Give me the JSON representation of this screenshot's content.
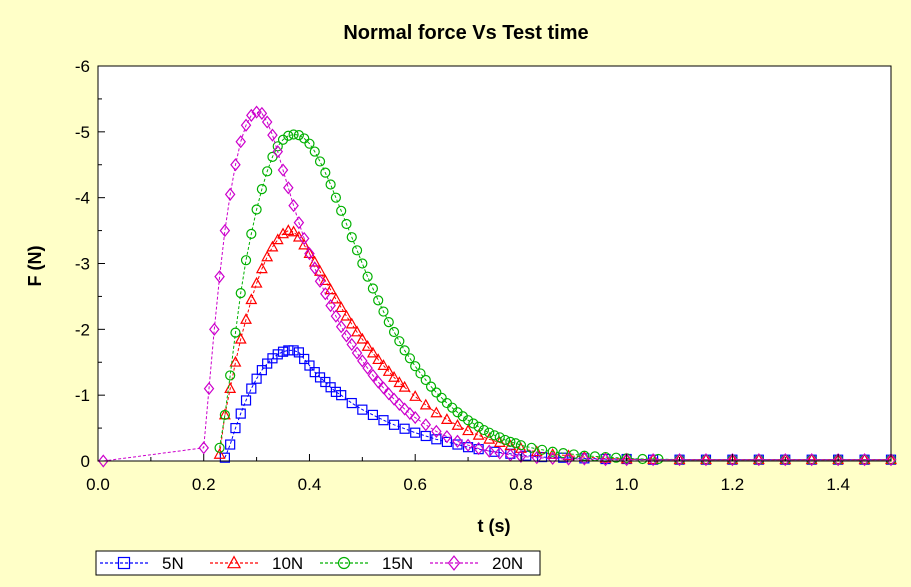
{
  "chart_data": {
    "type": "scatter",
    "title": "Normal force Vs Test time",
    "xlabel": "t (s)",
    "ylabel": "F (N)",
    "xlim": [
      0.0,
      1.5
    ],
    "ylim": [
      0,
      -6
    ],
    "y_axis_inverted": true,
    "grid": false,
    "legend_position": "bottom-left",
    "x_ticks": [
      "0.0",
      "0.2",
      "0.4",
      "0.6",
      "0.8",
      "1.0",
      "1.2",
      "1.4"
    ],
    "y_ticks": [
      "0",
      "-1",
      "-2",
      "-3",
      "-4",
      "-5",
      "-6"
    ],
    "series": [
      {
        "name": "5N",
        "color": "#0000ff",
        "marker": "square",
        "x": [
          0.24,
          0.25,
          0.26,
          0.27,
          0.28,
          0.29,
          0.3,
          0.31,
          0.32,
          0.33,
          0.34,
          0.35,
          0.36,
          0.37,
          0.38,
          0.39,
          0.4,
          0.41,
          0.42,
          0.43,
          0.44,
          0.45,
          0.46,
          0.48,
          0.5,
          0.52,
          0.54,
          0.56,
          0.58,
          0.6,
          0.62,
          0.64,
          0.66,
          0.68,
          0.7,
          0.72,
          0.75,
          0.78,
          0.81,
          0.84,
          0.88,
          0.92,
          0.96,
          1.0,
          1.05,
          1.1,
          1.15,
          1.2,
          1.25,
          1.3,
          1.35,
          1.4,
          1.45,
          1.5
        ],
        "y": [
          -0.05,
          -0.25,
          -0.5,
          -0.72,
          -0.92,
          -1.1,
          -1.25,
          -1.38,
          -1.48,
          -1.56,
          -1.62,
          -1.66,
          -1.68,
          -1.68,
          -1.65,
          -1.55,
          -1.45,
          -1.35,
          -1.27,
          -1.2,
          -1.12,
          -1.05,
          -1.0,
          -0.88,
          -0.78,
          -0.7,
          -0.62,
          -0.55,
          -0.49,
          -0.43,
          -0.38,
          -0.33,
          -0.29,
          -0.25,
          -0.21,
          -0.18,
          -0.14,
          -0.11,
          -0.08,
          -0.06,
          -0.05,
          -0.04,
          -0.03,
          -0.03,
          -0.02,
          -0.02,
          -0.02,
          -0.02,
          -0.02,
          -0.02,
          -0.02,
          -0.02,
          -0.02,
          -0.02
        ]
      },
      {
        "name": "10N",
        "color": "#ff0000",
        "marker": "triangle",
        "x": [
          0.23,
          0.24,
          0.25,
          0.26,
          0.27,
          0.28,
          0.29,
          0.3,
          0.31,
          0.32,
          0.33,
          0.34,
          0.35,
          0.36,
          0.37,
          0.38,
          0.39,
          0.4,
          0.41,
          0.42,
          0.43,
          0.44,
          0.45,
          0.46,
          0.47,
          0.48,
          0.49,
          0.5,
          0.51,
          0.52,
          0.53,
          0.54,
          0.55,
          0.56,
          0.57,
          0.58,
          0.6,
          0.62,
          0.64,
          0.66,
          0.68,
          0.7,
          0.72,
          0.74,
          0.76,
          0.78,
          0.8,
          0.83,
          0.86,
          0.89,
          0.92,
          0.96,
          1.0,
          1.05,
          1.1,
          1.15,
          1.2,
          1.25,
          1.3,
          1.35,
          1.4,
          1.45,
          1.5
        ],
        "y": [
          -0.1,
          -0.7,
          -1.1,
          -1.5,
          -1.85,
          -2.15,
          -2.45,
          -2.7,
          -2.92,
          -3.1,
          -3.25,
          -3.36,
          -3.45,
          -3.5,
          -3.48,
          -3.4,
          -3.28,
          -3.15,
          -3.02,
          -2.88,
          -2.74,
          -2.6,
          -2.46,
          -2.33,
          -2.2,
          -2.08,
          -1.96,
          -1.85,
          -1.74,
          -1.64,
          -1.54,
          -1.45,
          -1.36,
          -1.27,
          -1.19,
          -1.12,
          -0.98,
          -0.85,
          -0.73,
          -0.63,
          -0.54,
          -0.46,
          -0.39,
          -0.33,
          -0.28,
          -0.23,
          -0.19,
          -0.14,
          -0.1,
          -0.08,
          -0.06,
          -0.04,
          -0.03,
          -0.02,
          -0.02,
          -0.02,
          -0.02,
          -0.02,
          -0.02,
          -0.02,
          -0.02,
          -0.02,
          -0.02
        ]
      },
      {
        "name": "15N",
        "color": "#00b000",
        "marker": "circle",
        "x": [
          0.23,
          0.24,
          0.25,
          0.26,
          0.27,
          0.28,
          0.29,
          0.3,
          0.31,
          0.32,
          0.33,
          0.34,
          0.35,
          0.36,
          0.37,
          0.38,
          0.39,
          0.4,
          0.41,
          0.42,
          0.43,
          0.44,
          0.45,
          0.46,
          0.47,
          0.48,
          0.49,
          0.5,
          0.51,
          0.52,
          0.53,
          0.54,
          0.55,
          0.56,
          0.57,
          0.58,
          0.59,
          0.6,
          0.61,
          0.62,
          0.63,
          0.64,
          0.65,
          0.66,
          0.67,
          0.68,
          0.69,
          0.7,
          0.71,
          0.72,
          0.73,
          0.74,
          0.75,
          0.76,
          0.77,
          0.78,
          0.79,
          0.8,
          0.82,
          0.84,
          0.86,
          0.88,
          0.9,
          0.92,
          0.94,
          0.96,
          0.98,
          1.0,
          1.03,
          1.06,
          1.1,
          1.15,
          1.2,
          1.25,
          1.3,
          1.35,
          1.4,
          1.45,
          1.5
        ],
        "y": [
          -0.2,
          -0.7,
          -1.3,
          -1.95,
          -2.55,
          -3.05,
          -3.45,
          -3.82,
          -4.13,
          -4.4,
          -4.62,
          -4.78,
          -4.88,
          -4.94,
          -4.96,
          -4.95,
          -4.9,
          -4.82,
          -4.7,
          -4.55,
          -4.38,
          -4.2,
          -4.0,
          -3.8,
          -3.6,
          -3.4,
          -3.2,
          -3.0,
          -2.8,
          -2.62,
          -2.44,
          -2.27,
          -2.11,
          -1.96,
          -1.82,
          -1.68,
          -1.56,
          -1.44,
          -1.33,
          -1.23,
          -1.13,
          -1.04,
          -0.96,
          -0.88,
          -0.81,
          -0.74,
          -0.68,
          -0.62,
          -0.57,
          -0.52,
          -0.47,
          -0.43,
          -0.39,
          -0.36,
          -0.32,
          -0.29,
          -0.27,
          -0.24,
          -0.2,
          -0.17,
          -0.14,
          -0.12,
          -0.1,
          -0.08,
          -0.07,
          -0.06,
          -0.05,
          -0.04,
          -0.03,
          -0.03,
          -0.02,
          -0.02,
          -0.02,
          -0.02,
          -0.02,
          -0.02,
          -0.02,
          -0.02,
          -0.02
        ]
      },
      {
        "name": "20N",
        "color": "#cc00cc",
        "marker": "diamond",
        "x": [
          0.01,
          0.2,
          0.21,
          0.22,
          0.23,
          0.24,
          0.25,
          0.26,
          0.27,
          0.28,
          0.29,
          0.3,
          0.31,
          0.32,
          0.33,
          0.34,
          0.35,
          0.36,
          0.37,
          0.38,
          0.39,
          0.4,
          0.41,
          0.42,
          0.43,
          0.44,
          0.45,
          0.46,
          0.47,
          0.48,
          0.49,
          0.5,
          0.51,
          0.52,
          0.53,
          0.54,
          0.55,
          0.56,
          0.57,
          0.58,
          0.59,
          0.6,
          0.62,
          0.64,
          0.66,
          0.68,
          0.7,
          0.72,
          0.74,
          0.76,
          0.78,
          0.8,
          0.83,
          0.86,
          0.89,
          0.92,
          0.96,
          1.0,
          1.05,
          1.1,
          1.15,
          1.2,
          1.25,
          1.3,
          1.35,
          1.4,
          1.45,
          1.5
        ],
        "y": [
          0.0,
          -0.2,
          -1.1,
          -2.0,
          -2.8,
          -3.5,
          -4.05,
          -4.5,
          -4.85,
          -5.1,
          -5.25,
          -5.3,
          -5.28,
          -5.15,
          -4.95,
          -4.7,
          -4.42,
          -4.15,
          -3.88,
          -3.62,
          -3.38,
          -3.15,
          -2.93,
          -2.73,
          -2.54,
          -2.36,
          -2.2,
          -2.04,
          -1.9,
          -1.77,
          -1.64,
          -1.52,
          -1.41,
          -1.3,
          -1.2,
          -1.11,
          -1.02,
          -0.94,
          -0.86,
          -0.79,
          -0.72,
          -0.66,
          -0.55,
          -0.45,
          -0.37,
          -0.3,
          -0.24,
          -0.19,
          -0.15,
          -0.12,
          -0.09,
          -0.07,
          -0.05,
          -0.04,
          -0.03,
          -0.03,
          -0.02,
          -0.02,
          -0.02,
          -0.02,
          -0.02,
          -0.02,
          -0.02,
          -0.02,
          -0.02,
          -0.02,
          -0.02,
          -0.02
        ]
      }
    ]
  }
}
